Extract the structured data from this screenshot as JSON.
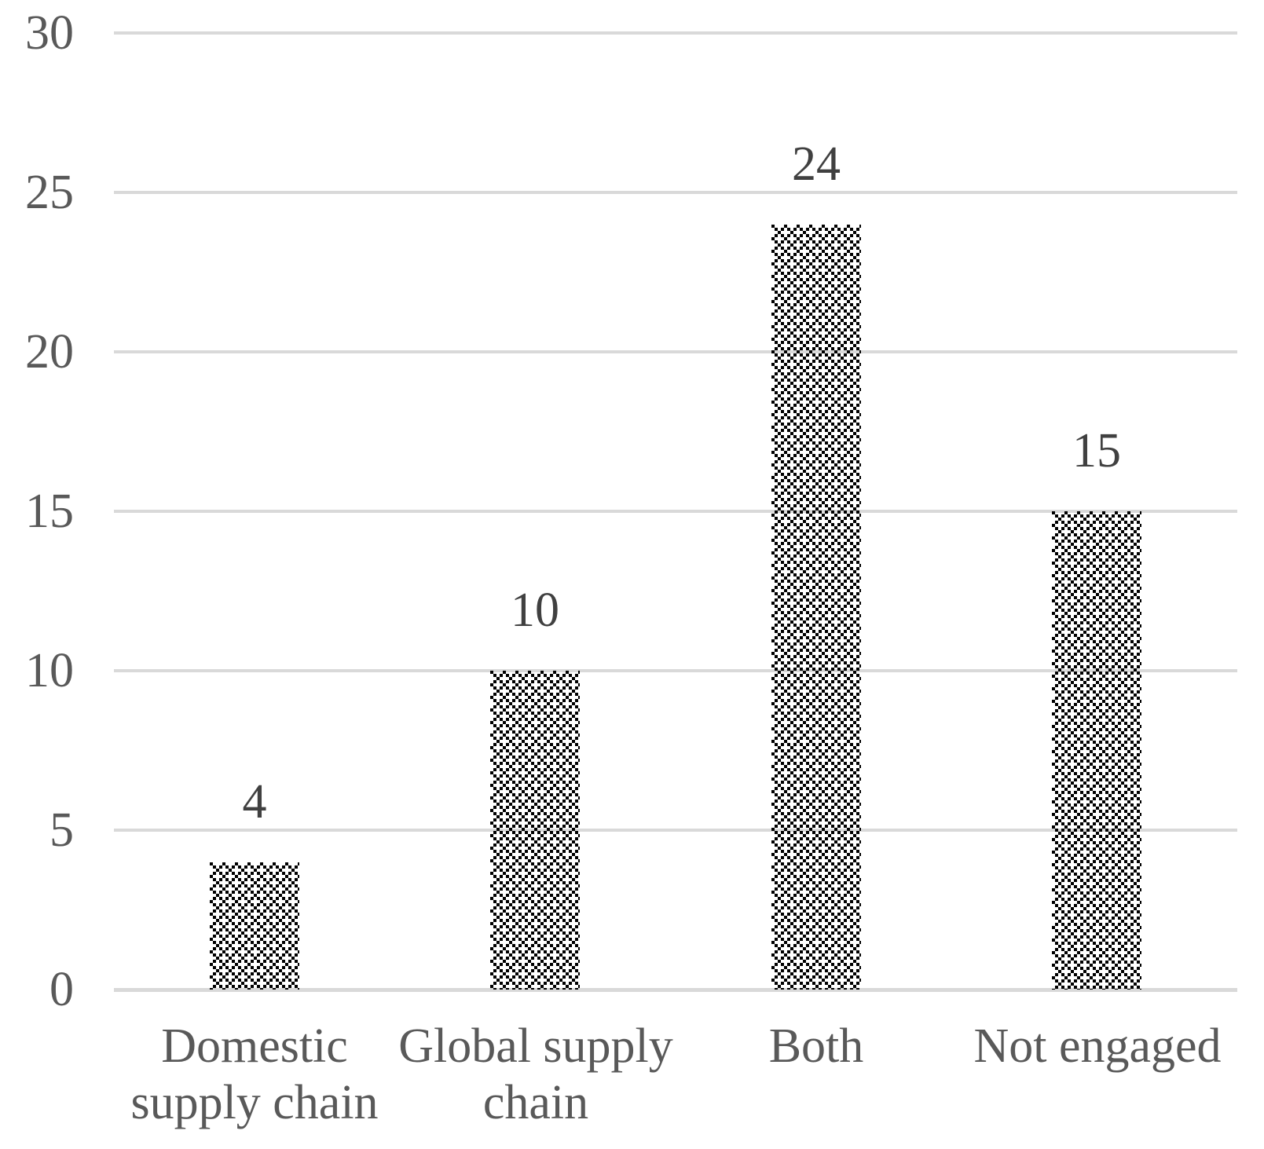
{
  "chart_data": {
    "type": "bar",
    "title": "",
    "xlabel": "",
    "ylabel": "",
    "categories": [
      "Domestic supply chain",
      "Global supply chain",
      "Both",
      "Not engaged"
    ],
    "category_label_lines": [
      [
        "Domestic",
        "supply chain"
      ],
      [
        "Global supply",
        "chain"
      ],
      [
        "Both"
      ],
      [
        "Not engaged"
      ]
    ],
    "values": [
      4,
      10,
      24,
      15
    ],
    "data_labels": [
      "4",
      "10",
      "24",
      "15"
    ],
    "y_ticks": [
      0,
      5,
      10,
      15,
      20,
      25,
      30
    ],
    "ylim": [
      0,
      30
    ],
    "grid": true,
    "legend": "none",
    "bar_fill_style": "open-diamond-pattern",
    "colors": {
      "axis_text": "#595959",
      "category_text": "#595959",
      "data_label_text": "#404040",
      "gridline": "#d9d9d9",
      "pattern_foreground": "#000000",
      "background": "#ffffff"
    }
  }
}
